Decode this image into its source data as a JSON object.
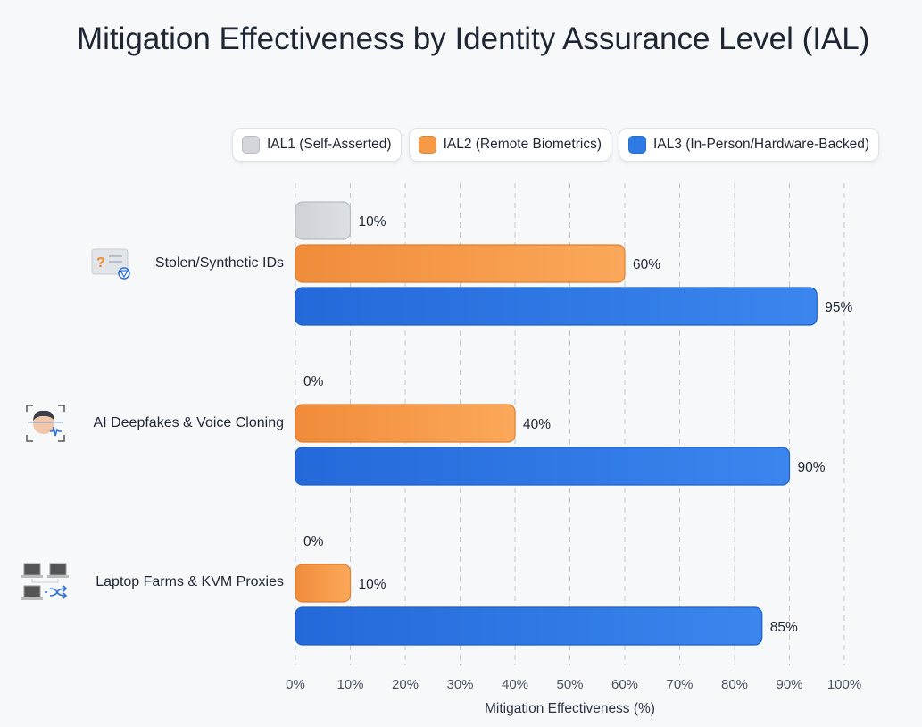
{
  "chart_data": {
    "type": "bar",
    "orientation": "horizontal",
    "title": "Mitigation Effectiveness by Identity Assurance Level (IAL)",
    "xlabel": "Mitigation Effectiveness (%)",
    "ylabel": "",
    "xlim": [
      0,
      100
    ],
    "xticks": [
      "0%",
      "10%",
      "20%",
      "30%",
      "40%",
      "50%",
      "60%",
      "70%",
      "80%",
      "90%",
      "100%"
    ],
    "grid": "vertical dashed",
    "legend_placement": "top",
    "categories": [
      "Stolen/Synthetic IDs",
      "AI Deepfakes & Voice Cloning",
      "Laptop Farms & KVM Proxies"
    ],
    "category_icons": [
      "id-card-question-icon",
      "face-scan-voice-icon",
      "laptop-farm-shuffle-icon"
    ],
    "series": [
      {
        "name": "IAL1 (Self-Asserted)",
        "color": "#d3d6db",
        "values": [
          10,
          0,
          0
        ],
        "labels": [
          "10%",
          "0%",
          "0%"
        ]
      },
      {
        "name": "IAL2 (Remote Biometrics)",
        "color": "#f59a45",
        "values": [
          60,
          40,
          10
        ],
        "labels": [
          "60%",
          "40%",
          "10%"
        ]
      },
      {
        "name": "IAL3 (In-Person/Hardware-Backed)",
        "color": "#2f7be6",
        "values": [
          95,
          90,
          85
        ],
        "labels": [
          "95%",
          "90%",
          "85%"
        ]
      }
    ]
  }
}
